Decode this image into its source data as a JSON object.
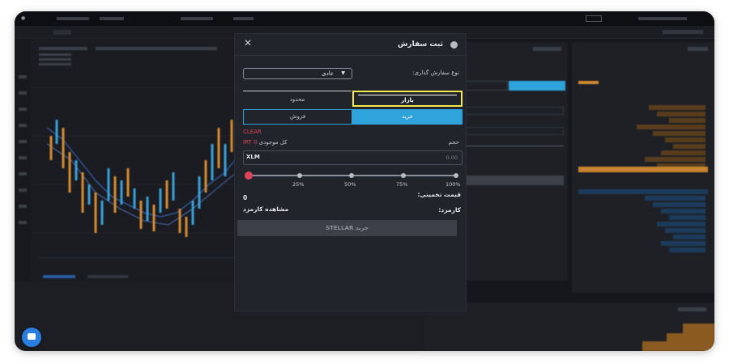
{
  "order_modal": {
    "title": "ثبت سفارش",
    "order_type_label": "نوع سفارش گذاری:",
    "order_type_value": "عادی",
    "tabs": {
      "limit": "محدود",
      "market": "بازار"
    },
    "sides": {
      "buy": "خرید",
      "sell": "فروش"
    },
    "clear_label": "CLEAR",
    "balance_label": "کل موجودی",
    "balance_value": "0 IRT",
    "volume_label": "حجم",
    "volume_currency": "XLM",
    "volume_placeholder": "0.00",
    "slider": {
      "value_percent": 0,
      "ticks": [
        "25%",
        "50%",
        "75%",
        "100%"
      ]
    },
    "estimated_price_label": "قیمت تخمینی:",
    "estimated_price_value": "0",
    "fee_label": "کارمزد:",
    "view_fee_label": "مشاهده کارمزد",
    "submit_label": "خرید STELLAR"
  },
  "colors": {
    "accent_blue": "#2ea3dc",
    "highlight_yellow": "#f2e94e",
    "clear_red": "#e0445a",
    "ask_orange": "#c8842e",
    "bid_blue": "#2a6fb4"
  },
  "icons": {
    "close": "close-icon",
    "chat": "chat-icon",
    "dropdown": "caret-down-icon"
  }
}
